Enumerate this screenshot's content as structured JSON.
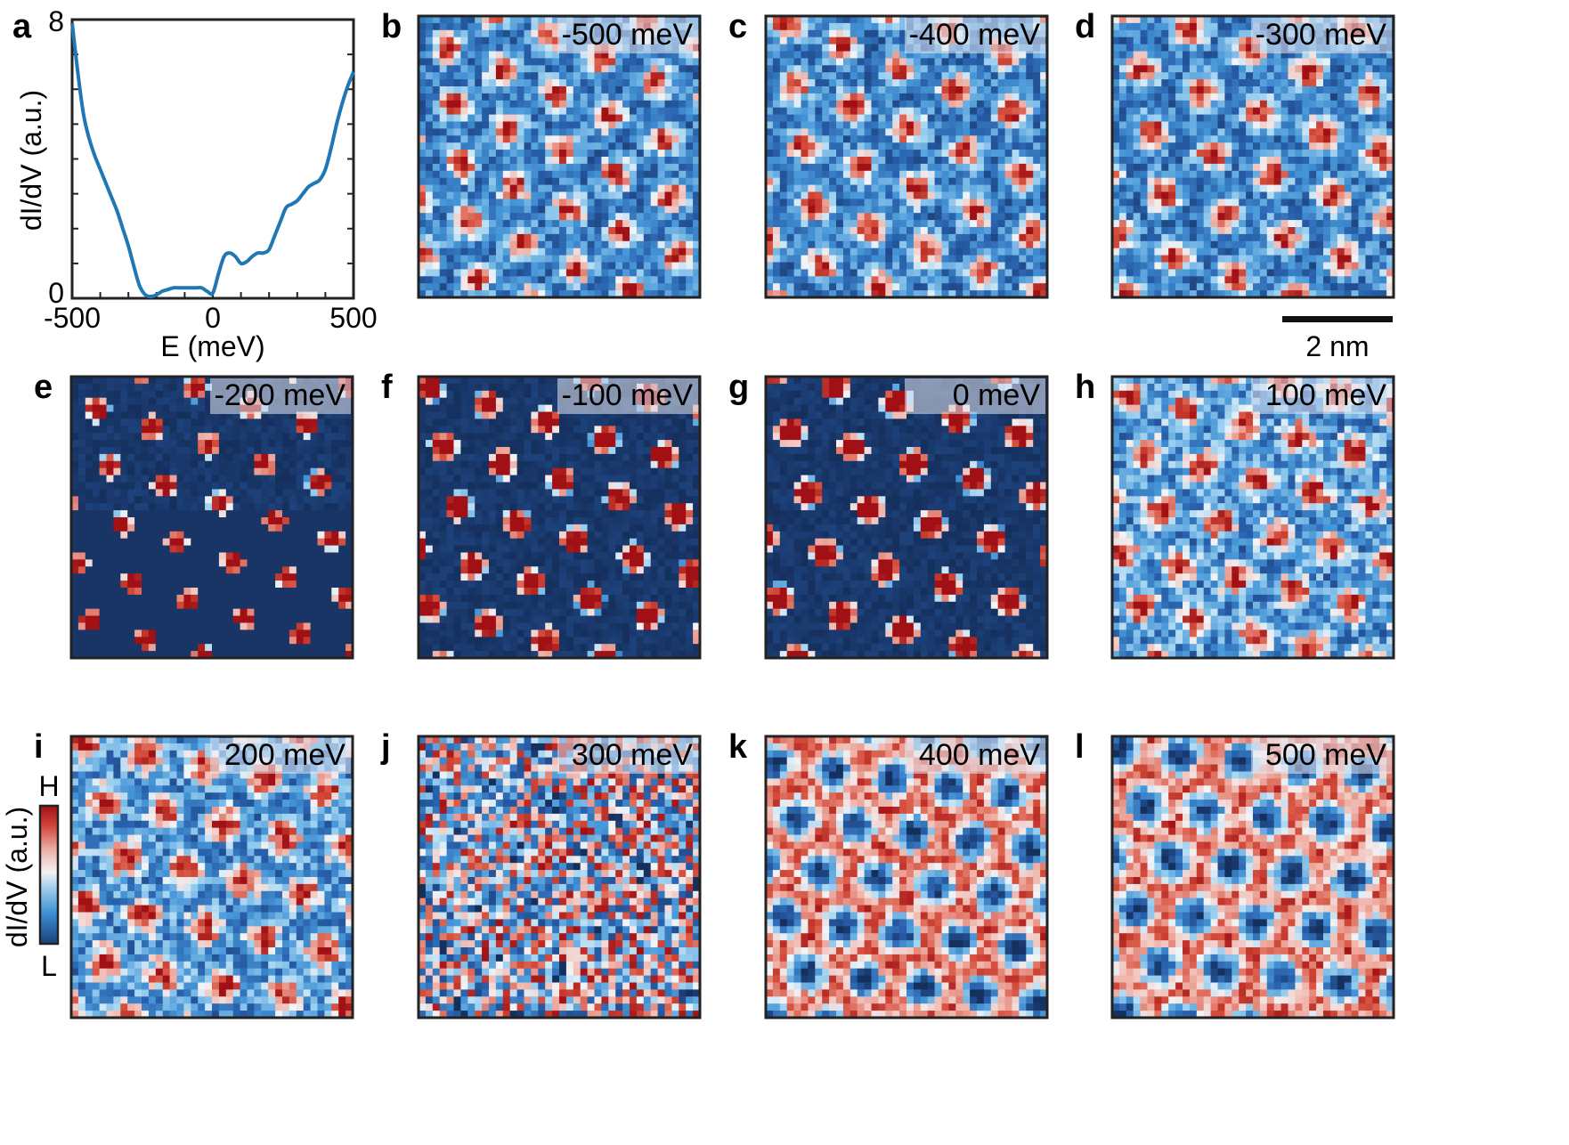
{
  "figure": {
    "colors": {
      "curve": "#1f77b4",
      "frame": "#222222",
      "cmap_low": "#17305e",
      "cmap_mid": "#f4f6fa",
      "cmap_high": "#b0161b"
    }
  },
  "chart_data": [
    {
      "type": "line",
      "panel": "a",
      "xlabel": "E (meV)",
      "ylabel": "dI/dV (a.u.)",
      "xlim": [
        -500,
        500
      ],
      "ylim": [
        0,
        8
      ],
      "xticks": [
        "-500",
        "0",
        "500"
      ],
      "yticks": [
        "0",
        "8"
      ],
      "series": [
        {
          "name": "dI/dV",
          "x": [
            -500,
            -480,
            -460,
            -440,
            -420,
            -400,
            -380,
            -360,
            -340,
            -320,
            -300,
            -280,
            -260,
            -240,
            -220,
            -200,
            -180,
            -160,
            -140,
            -120,
            -100,
            -80,
            -60,
            -40,
            -20,
            0,
            20,
            40,
            60,
            80,
            100,
            120,
            140,
            160,
            180,
            200,
            220,
            240,
            260,
            280,
            300,
            320,
            340,
            360,
            380,
            400,
            420,
            440,
            460,
            480,
            500
          ],
          "y": [
            7.9,
            6.5,
            5.3,
            4.6,
            4.1,
            3.7,
            3.3,
            2.9,
            2.5,
            2.0,
            1.5,
            0.9,
            0.35,
            0.1,
            0.05,
            0.1,
            0.2,
            0.25,
            0.3,
            0.3,
            0.3,
            0.3,
            0.3,
            0.3,
            0.2,
            0.15,
            0.7,
            1.2,
            1.3,
            1.2,
            1.0,
            1.05,
            1.2,
            1.3,
            1.3,
            1.4,
            1.8,
            2.2,
            2.6,
            2.7,
            2.8,
            3.0,
            3.2,
            3.3,
            3.4,
            3.7,
            4.3,
            5.0,
            5.6,
            6.1,
            6.5
          ]
        }
      ]
    },
    {
      "type": "heatmap",
      "panel_maps": [
        {
          "panel": "b",
          "energy": "-500 meV"
        },
        {
          "panel": "c",
          "energy": "-400 meV"
        },
        {
          "panel": "d",
          "energy": "-300 meV"
        },
        {
          "panel": "e",
          "energy": "-200 meV"
        },
        {
          "panel": "f",
          "energy": "-100 meV"
        },
        {
          "panel": "g",
          "energy": "0 meV"
        },
        {
          "panel": "h",
          "energy": "100 meV"
        },
        {
          "panel": "i",
          "energy": "200 meV"
        },
        {
          "panel": "j",
          "energy": "300 meV"
        },
        {
          "panel": "k",
          "energy": "400 meV"
        },
        {
          "panel": "l",
          "energy": "500 meV"
        }
      ],
      "colorbar": {
        "label": "dI/dV (a.u.)",
        "high": "H",
        "low": "L"
      },
      "scale_bar": "2 nm"
    }
  ]
}
